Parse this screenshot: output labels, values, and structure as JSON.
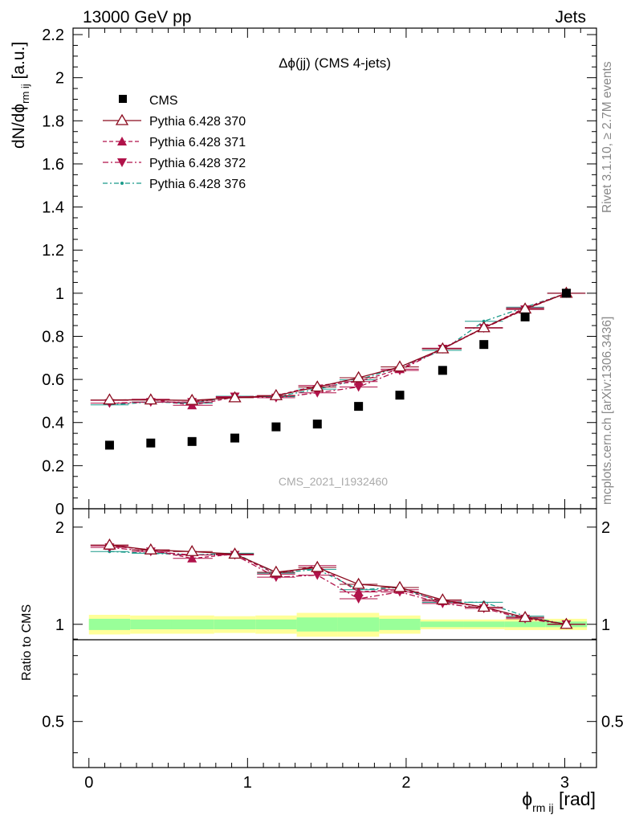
{
  "header": {
    "left": "13000 GeV pp",
    "right": "Jets"
  },
  "side_labels": {
    "rivet": "Rivet 3.1.10, ≥ 2.7M events",
    "mcplots": "mcplots.cern.ch [arXiv:1306.3436]"
  },
  "watermark": "CMS_2021_I1932460",
  "colors": {
    "cms": "#000000",
    "p370": "#8b0a1e",
    "p371": "#b0124a",
    "p372": "#b0124a",
    "p376": "#1a9a8a",
    "band_outer": "#ffff99",
    "band_inner": "#99ff99"
  },
  "chart_data": [
    {
      "type": "line",
      "title": "Δϕ(jj) (CMS 4-jets)",
      "ylabel": "dN/dϕ_rm ij [a.u.]",
      "ylim": [
        0,
        2.23
      ],
      "xlim": [
        -0.1,
        3.2
      ],
      "yticks": [
        "0",
        "0.2",
        "0.4",
        "0.6",
        "0.8",
        "1",
        "1.2",
        "1.4",
        "1.6",
        "1.8",
        "2",
        "2.2"
      ],
      "x": [
        0.13,
        0.39,
        0.65,
        0.92,
        1.18,
        1.44,
        1.7,
        1.96,
        2.23,
        2.49,
        2.75,
        3.01
      ],
      "series": [
        {
          "name": "CMS",
          "values": [
            0.295,
            0.305,
            0.312,
            0.328,
            0.38,
            0.393,
            0.475,
            0.527,
            0.642,
            0.762,
            0.89,
            1.0
          ]
        },
        {
          "name": "Pythia 6.428 370",
          "values": [
            0.505,
            0.505,
            0.503,
            0.515,
            0.525,
            0.565,
            0.608,
            0.658,
            0.742,
            0.84,
            0.927,
            1.0
          ]
        },
        {
          "name": "Pythia 6.428 371",
          "values": [
            0.503,
            0.508,
            0.48,
            0.518,
            0.525,
            0.572,
            0.59,
            0.648,
            0.745,
            0.84,
            0.932,
            1.0
          ]
        },
        {
          "name": "Pythia 6.428 372",
          "values": [
            0.49,
            0.495,
            0.495,
            0.52,
            0.515,
            0.538,
            0.565,
            0.642,
            0.742,
            0.838,
            0.925,
            1.0
          ]
        },
        {
          "name": "Pythia 6.428 376",
          "values": [
            0.482,
            0.495,
            0.49,
            0.522,
            0.52,
            0.555,
            0.598,
            0.658,
            0.735,
            0.87,
            0.935,
            1.0
          ]
        }
      ]
    },
    {
      "type": "line",
      "ylabel": "Ratio to CMS",
      "xlabel": "ϕ_rm ij [rad]",
      "ylim": [
        0.36,
        2.28
      ],
      "yscale": "log",
      "yticks": [
        "0.5",
        "1",
        "2"
      ],
      "xticks": [
        "0",
        "1",
        "2",
        "3"
      ],
      "x": [
        0.13,
        0.39,
        0.65,
        0.92,
        1.18,
        1.44,
        1.7,
        1.96,
        2.23,
        2.49,
        2.75,
        3.01
      ],
      "series": [
        {
          "name": "Pythia 6.428 370",
          "values": [
            1.76,
            1.7,
            1.68,
            1.65,
            1.45,
            1.5,
            1.33,
            1.3,
            1.19,
            1.13,
            1.05,
            1.0
          ]
        },
        {
          "name": "Pythia 6.428 371",
          "values": [
            1.75,
            1.7,
            1.6,
            1.65,
            1.43,
            1.52,
            1.26,
            1.28,
            1.18,
            1.13,
            1.05,
            1.0
          ]
        },
        {
          "name": "Pythia 6.428 372",
          "values": [
            1.73,
            1.68,
            1.64,
            1.64,
            1.4,
            1.42,
            1.2,
            1.26,
            1.16,
            1.12,
            1.04,
            1.0
          ]
        },
        {
          "name": "Pythia 6.428 376",
          "values": [
            1.68,
            1.66,
            1.64,
            1.66,
            1.44,
            1.48,
            1.28,
            1.3,
            1.17,
            1.17,
            1.06,
            1.0
          ]
        }
      ],
      "uncertainty_bands": {
        "edges": [
          0.0,
          0.26,
          0.52,
          0.79,
          1.05,
          1.31,
          1.57,
          1.83,
          2.09,
          2.36,
          2.62,
          2.88,
          3.14
        ],
        "outer_half": [
          0.07,
          0.065,
          0.065,
          0.06,
          0.065,
          0.085,
          0.085,
          0.065,
          0.035,
          0.035,
          0.04,
          0.04
        ],
        "inner_half": [
          0.04,
          0.035,
          0.035,
          0.035,
          0.035,
          0.05,
          0.05,
          0.04,
          0.02,
          0.02,
          0.02,
          0.02
        ]
      }
    }
  ]
}
